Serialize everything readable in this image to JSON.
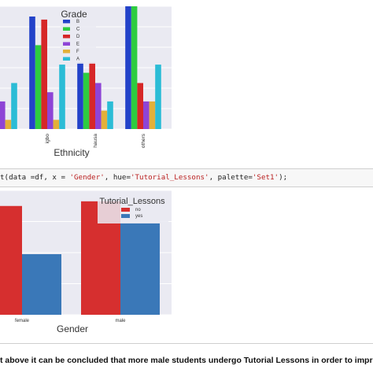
{
  "chart_data": [
    {
      "type": "bar",
      "xlabel": "Ethnicity",
      "ylabel": "",
      "categories": [
        "",
        "igbo",
        "hausa",
        "others"
      ],
      "legend_title": "Grade",
      "legend_position": "top-center",
      "grid": true,
      "ylim": [
        0,
        12
      ],
      "series": [
        {
          "name": "B",
          "color": "#2342c9",
          "values": [
            null,
            11,
            6.5,
            12
          ]
        },
        {
          "name": "C",
          "color": "#2ecc40",
          "values": [
            null,
            8.2,
            5.5,
            12
          ]
        },
        {
          "name": "D",
          "color": "#d62728",
          "values": [
            null,
            10.7,
            6.5,
            4.5
          ]
        },
        {
          "name": "E",
          "color": "#8e44d6",
          "values": [
            2.7,
            3.6,
            4.5,
            2.7
          ]
        },
        {
          "name": "F",
          "color": "#e3b03a",
          "values": [
            0.9,
            0.9,
            1.8,
            2.7
          ]
        },
        {
          "name": "A",
          "color": "#2bbcd6",
          "values": [
            4.5,
            6.3,
            2.7,
            6.3
          ]
        }
      ]
    },
    {
      "type": "bar",
      "xlabel": "Gender",
      "ylabel": "",
      "categories": [
        "female",
        "male"
      ],
      "legend_title": "Tutorial_Lessons",
      "legend_position": "top-right",
      "grid": true,
      "ylim": [
        0,
        80
      ],
      "series": [
        {
          "name": "no",
          "color": "#d62f2f",
          "values": [
            70,
            73
          ]
        },
        {
          "name": "yes",
          "color": "#3a78b8",
          "values": [
            39,
            59
          ]
        }
      ]
    }
  ],
  "code_cell": {
    "prefix": "t(data =df, x = ",
    "x_value": "'Gender'",
    "mid": ", hue=",
    "hue_value": "'Tutorial_Lessons'",
    "mid2": ", palette=",
    "palette_value": "'Set1'",
    "suffix": ");"
  },
  "markdown": {
    "text": "t above it can be concluded that more male students undergo Tutorial Lessons in order to improve academ"
  }
}
